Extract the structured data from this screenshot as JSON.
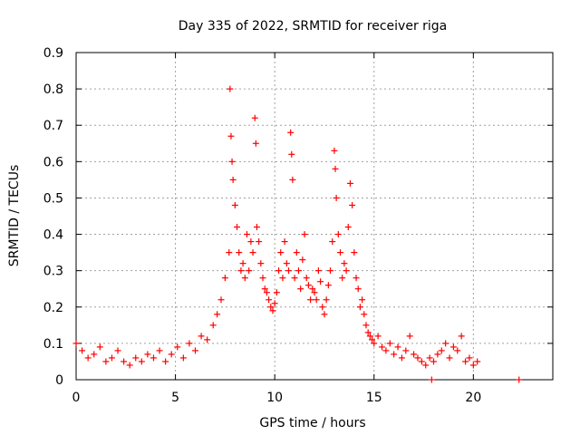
{
  "chart_data": {
    "type": "scatter",
    "title": "Day 335 of 2022, SRMTID for receiver riga",
    "xlabel": "GPS time / hours",
    "ylabel": "SRMTID / TECUs",
    "xlim": [
      0,
      24
    ],
    "ylim": [
      0,
      0.9
    ],
    "xticks": [
      0,
      5,
      10,
      15,
      20
    ],
    "xtick_labels": [
      "0",
      "5",
      "10",
      "15",
      "20"
    ],
    "yticks": [
      0,
      0.1,
      0.2,
      0.3,
      0.4,
      0.5,
      0.6,
      0.7,
      0.8,
      0.9
    ],
    "ytick_labels": [
      "0",
      "0.1",
      "0.2",
      "0.3",
      "0.4",
      "0.5",
      "0.6",
      "0.7",
      "0.8",
      "0.9"
    ],
    "grid": true,
    "marker": "+",
    "series": [
      {
        "name": "SRMTID",
        "color": "#ff0000",
        "x": [
          0.0,
          0.3,
          0.6,
          0.9,
          1.2,
          1.5,
          1.8,
          2.1,
          2.4,
          2.7,
          3.0,
          3.3,
          3.6,
          3.9,
          4.2,
          4.5,
          4.8,
          5.1,
          5.4,
          5.7,
          6.0,
          6.3,
          6.6,
          6.9,
          7.1,
          7.3,
          7.5,
          7.7,
          7.75,
          7.8,
          7.85,
          7.9,
          8.0,
          8.1,
          8.2,
          8.3,
          8.4,
          8.5,
          8.6,
          8.7,
          8.8,
          8.9,
          9.0,
          9.05,
          9.1,
          9.2,
          9.3,
          9.4,
          9.5,
          9.6,
          9.7,
          9.8,
          9.9,
          10.0,
          10.1,
          10.2,
          10.3,
          10.4,
          10.5,
          10.6,
          10.7,
          10.8,
          10.85,
          10.9,
          11.0,
          11.1,
          11.2,
          11.3,
          11.4,
          11.5,
          11.6,
          11.7,
          11.8,
          11.9,
          12.0,
          12.1,
          12.2,
          12.3,
          12.4,
          12.5,
          12.6,
          12.7,
          12.8,
          12.9,
          13.0,
          13.05,
          13.1,
          13.2,
          13.3,
          13.4,
          13.5,
          13.6,
          13.7,
          13.8,
          13.9,
          14.0,
          14.1,
          14.2,
          14.3,
          14.4,
          14.5,
          14.6,
          14.7,
          14.8,
          14.9,
          15.0,
          15.2,
          15.4,
          15.6,
          15.8,
          16.0,
          16.2,
          16.4,
          16.6,
          16.8,
          17.0,
          17.2,
          17.4,
          17.6,
          17.8,
          17.9,
          18.0,
          18.2,
          18.4,
          18.6,
          18.8,
          19.0,
          19.2,
          19.4,
          19.6,
          19.8,
          20.0,
          20.2,
          22.3
        ],
        "y": [
          0.1,
          0.08,
          0.06,
          0.07,
          0.09,
          0.05,
          0.06,
          0.08,
          0.05,
          0.04,
          0.06,
          0.05,
          0.07,
          0.06,
          0.08,
          0.05,
          0.07,
          0.09,
          0.06,
          0.1,
          0.08,
          0.12,
          0.11,
          0.15,
          0.18,
          0.22,
          0.28,
          0.35,
          0.8,
          0.67,
          0.6,
          0.55,
          0.48,
          0.42,
          0.35,
          0.3,
          0.32,
          0.28,
          0.4,
          0.3,
          0.38,
          0.35,
          0.72,
          0.65,
          0.42,
          0.38,
          0.32,
          0.28,
          0.25,
          0.24,
          0.22,
          0.2,
          0.19,
          0.21,
          0.24,
          0.3,
          0.35,
          0.28,
          0.38,
          0.32,
          0.3,
          0.68,
          0.62,
          0.55,
          0.28,
          0.35,
          0.3,
          0.25,
          0.33,
          0.4,
          0.28,
          0.26,
          0.22,
          0.25,
          0.24,
          0.22,
          0.3,
          0.27,
          0.2,
          0.18,
          0.22,
          0.26,
          0.3,
          0.38,
          0.63,
          0.58,
          0.5,
          0.4,
          0.35,
          0.28,
          0.32,
          0.3,
          0.42,
          0.54,
          0.48,
          0.35,
          0.28,
          0.25,
          0.2,
          0.22,
          0.18,
          0.15,
          0.13,
          0.12,
          0.11,
          0.1,
          0.12,
          0.09,
          0.08,
          0.1,
          0.07,
          0.09,
          0.06,
          0.08,
          0.12,
          0.07,
          0.06,
          0.05,
          0.04,
          0.06,
          0.0,
          0.05,
          0.07,
          0.08,
          0.1,
          0.06,
          0.09,
          0.08,
          0.12,
          0.05,
          0.06,
          0.04,
          0.05,
          0.0
        ]
      }
    ]
  }
}
